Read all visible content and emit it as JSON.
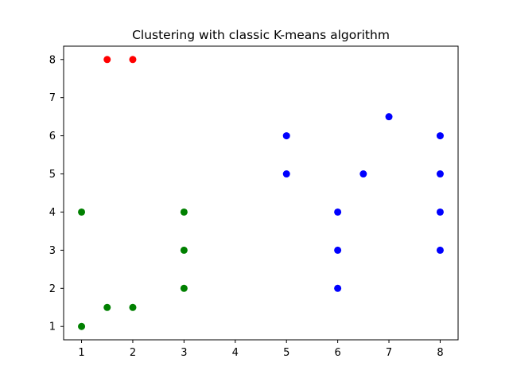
{
  "chart_data": {
    "type": "scatter",
    "title": "Clustering with classic K-means algorithm",
    "xlabel": "",
    "ylabel": "",
    "xlim": [
      0.65,
      8.35
    ],
    "ylim": [
      0.65,
      8.35
    ],
    "xticks": [
      1,
      2,
      3,
      4,
      5,
      6,
      7,
      8
    ],
    "yticks": [
      1,
      2,
      3,
      4,
      5,
      6,
      7,
      8
    ],
    "grid": false,
    "series": [
      {
        "color": "#ff0000",
        "points": [
          [
            1.5,
            8
          ],
          [
            2,
            8
          ]
        ]
      },
      {
        "color": "#008000",
        "points": [
          [
            1,
            4
          ],
          [
            1,
            1
          ],
          [
            1.5,
            1.5
          ],
          [
            2,
            1.5
          ],
          [
            3,
            4
          ],
          [
            3,
            3
          ],
          [
            3,
            2
          ]
        ]
      },
      {
        "color": "#0000ff",
        "points": [
          [
            5,
            6
          ],
          [
            5,
            5
          ],
          [
            6,
            4
          ],
          [
            6,
            3
          ],
          [
            6,
            2
          ],
          [
            6.5,
            5
          ],
          [
            7,
            6.5
          ],
          [
            8,
            6
          ],
          [
            8,
            5
          ],
          [
            8,
            4
          ],
          [
            8,
            3
          ]
        ]
      }
    ]
  }
}
